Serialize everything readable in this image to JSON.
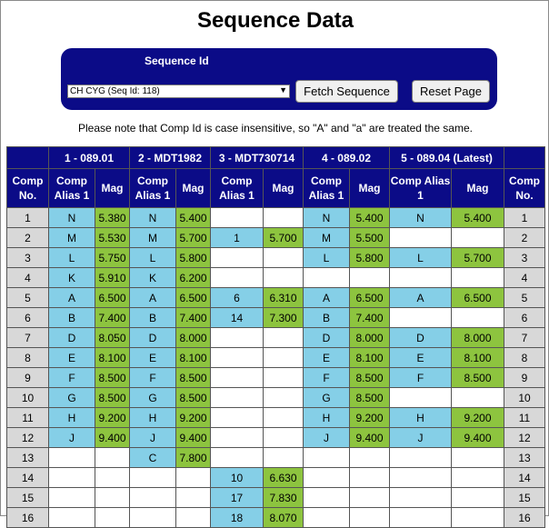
{
  "page": {
    "title": "Sequence Data"
  },
  "form": {
    "label": "Sequence Id",
    "selected": "CH CYG (Seq Id: 118)",
    "fetch_label": "Fetch Sequence",
    "reset_label": "Reset Page"
  },
  "note": "Please note that Comp Id is case insensitive, so \"A\" and \"a\" are treated the same.",
  "table": {
    "groups": [
      "1 - 089.01",
      "2 - MDT1982",
      "3 - MDT730714",
      "4 - 089.02",
      "5 - 089.04 (Latest)"
    ],
    "comp_no_header": "Comp No.",
    "alias_header": "Comp Alias 1",
    "mag_header": "Mag",
    "rows": [
      {
        "no": "1",
        "c": [
          [
            "N",
            "5.380"
          ],
          [
            "N",
            "5.400"
          ],
          [
            "",
            ""
          ],
          [
            "N",
            "5.400"
          ],
          [
            "N",
            "5.400"
          ]
        ]
      },
      {
        "no": "2",
        "c": [
          [
            "M",
            "5.530"
          ],
          [
            "M",
            "5.700"
          ],
          [
            "1",
            "5.700"
          ],
          [
            "M",
            "5.500"
          ],
          [
            "",
            ""
          ]
        ]
      },
      {
        "no": "3",
        "c": [
          [
            "L",
            "5.750"
          ],
          [
            "L",
            "5.800"
          ],
          [
            "",
            ""
          ],
          [
            "L",
            "5.800"
          ],
          [
            "L",
            "5.700"
          ]
        ]
      },
      {
        "no": "4",
        "c": [
          [
            "K",
            "5.910"
          ],
          [
            "K",
            "6.200"
          ],
          [
            "",
            ""
          ],
          [
            "",
            ""
          ],
          [
            "",
            ""
          ]
        ]
      },
      {
        "no": "5",
        "c": [
          [
            "A",
            "6.500"
          ],
          [
            "A",
            "6.500"
          ],
          [
            "6",
            "6.310"
          ],
          [
            "A",
            "6.500"
          ],
          [
            "A",
            "6.500"
          ]
        ]
      },
      {
        "no": "6",
        "c": [
          [
            "B",
            "7.400"
          ],
          [
            "B",
            "7.400"
          ],
          [
            "14",
            "7.300"
          ],
          [
            "B",
            "7.400"
          ],
          [
            "",
            ""
          ]
        ]
      },
      {
        "no": "7",
        "c": [
          [
            "D",
            "8.050"
          ],
          [
            "D",
            "8.000"
          ],
          [
            "",
            ""
          ],
          [
            "D",
            "8.000"
          ],
          [
            "D",
            "8.000"
          ]
        ]
      },
      {
        "no": "8",
        "c": [
          [
            "E",
            "8.100"
          ],
          [
            "E",
            "8.100"
          ],
          [
            "",
            ""
          ],
          [
            "E",
            "8.100"
          ],
          [
            "E",
            "8.100"
          ]
        ]
      },
      {
        "no": "9",
        "c": [
          [
            "F",
            "8.500"
          ],
          [
            "F",
            "8.500"
          ],
          [
            "",
            ""
          ],
          [
            "F",
            "8.500"
          ],
          [
            "F",
            "8.500"
          ]
        ]
      },
      {
        "no": "10",
        "c": [
          [
            "G",
            "8.500"
          ],
          [
            "G",
            "8.500"
          ],
          [
            "",
            ""
          ],
          [
            "G",
            "8.500"
          ],
          [
            "",
            ""
          ]
        ]
      },
      {
        "no": "11",
        "c": [
          [
            "H",
            "9.200"
          ],
          [
            "H",
            "9.200"
          ],
          [
            "",
            ""
          ],
          [
            "H",
            "9.200"
          ],
          [
            "H",
            "9.200"
          ]
        ]
      },
      {
        "no": "12",
        "c": [
          [
            "J",
            "9.400"
          ],
          [
            "J",
            "9.400"
          ],
          [
            "",
            ""
          ],
          [
            "J",
            "9.400"
          ],
          [
            "J",
            "9.400"
          ]
        ]
      },
      {
        "no": "13",
        "c": [
          [
            "",
            ""
          ],
          [
            "C",
            "7.800"
          ],
          [
            "",
            ""
          ],
          [
            "",
            ""
          ],
          [
            "",
            ""
          ]
        ]
      },
      {
        "no": "14",
        "c": [
          [
            "",
            ""
          ],
          [
            "",
            ""
          ],
          [
            "10",
            "6.630"
          ],
          [
            "",
            ""
          ],
          [
            "",
            ""
          ]
        ]
      },
      {
        "no": "15",
        "c": [
          [
            "",
            ""
          ],
          [
            "",
            ""
          ],
          [
            "17",
            "7.830"
          ],
          [
            "",
            ""
          ],
          [
            "",
            ""
          ]
        ]
      },
      {
        "no": "16",
        "c": [
          [
            "",
            ""
          ],
          [
            "",
            ""
          ],
          [
            "18",
            "8.070"
          ],
          [
            "",
            ""
          ],
          [
            "",
            ""
          ]
        ]
      }
    ]
  }
}
